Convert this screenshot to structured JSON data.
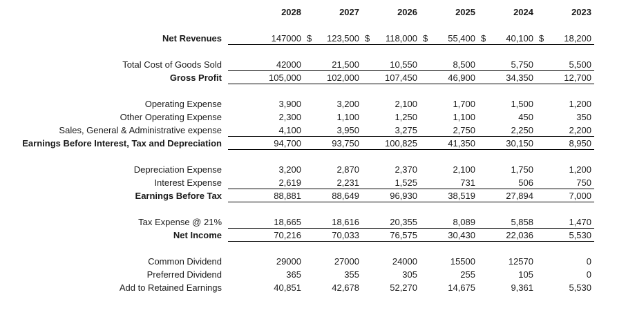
{
  "table": {
    "currency_symbol": "$",
    "years": [
      "2028",
      "2027",
      "2026",
      "2025",
      "2024",
      "2023"
    ],
    "rows": [
      {
        "label": "Net Revenues",
        "bold": true,
        "underline": true,
        "spacer_after": true,
        "dollar_cols": [
          1,
          2,
          3,
          4,
          5
        ],
        "values": [
          "147000",
          "123,500",
          "118,000",
          "55,400",
          "40,100",
          "18,200"
        ]
      },
      {
        "label": "Total Cost of Goods Sold",
        "bold": false,
        "underline": true,
        "values": [
          "42000",
          "21,500",
          "10,550",
          "8,500",
          "5,750",
          "5,500"
        ]
      },
      {
        "label": "Gross Profit",
        "bold": true,
        "underline": true,
        "spacer_after": true,
        "values": [
          "105,000",
          "102,000",
          "107,450",
          "46,900",
          "34,350",
          "12,700"
        ]
      },
      {
        "label": "Operating Expense",
        "bold": false,
        "values": [
          "3,900",
          "3,200",
          "2,100",
          "1,700",
          "1,500",
          "1,200"
        ]
      },
      {
        "label": "Other Operating Expense",
        "bold": false,
        "values": [
          "2,300",
          "1,100",
          "1,250",
          "1,100",
          "450",
          "350"
        ]
      },
      {
        "label": "Sales, General & Administrative expense",
        "bold": false,
        "underline": true,
        "values": [
          "4,100",
          "3,950",
          "3,275",
          "2,750",
          "2,250",
          "2,200"
        ]
      },
      {
        "label": "Earnings Before Interest, Tax and Depreciation",
        "bold": true,
        "underline": true,
        "spacer_after": true,
        "values": [
          "94,700",
          "93,750",
          "100,825",
          "41,350",
          "30,150",
          "8,950"
        ]
      },
      {
        "label": "Depreciation Expense",
        "bold": false,
        "values": [
          "3,200",
          "2,870",
          "2,370",
          "2,100",
          "1,750",
          "1,200"
        ]
      },
      {
        "label": "Interest Expense",
        "bold": false,
        "underline": true,
        "values": [
          "2,619",
          "2,231",
          "1,525",
          "731",
          "506",
          "750"
        ]
      },
      {
        "label": "Earnings Before Tax",
        "bold": true,
        "underline": true,
        "spacer_after": true,
        "values": [
          "88,881",
          "88,649",
          "96,930",
          "38,519",
          "27,894",
          "7,000"
        ]
      },
      {
        "label": "Tax Expense @ 21%",
        "bold": false,
        "underline": true,
        "values": [
          "18,665",
          "18,616",
          "20,355",
          "8,089",
          "5,858",
          "1,470"
        ]
      },
      {
        "label": "Net Income",
        "bold": true,
        "underline": true,
        "spacer_after": true,
        "values": [
          "70,216",
          "70,033",
          "76,575",
          "30,430",
          "22,036",
          "5,530"
        ]
      },
      {
        "label": "Common Dividend",
        "bold": false,
        "values": [
          "29000",
          "27000",
          "24000",
          "15500",
          "12570",
          "0"
        ]
      },
      {
        "label": "Preferred Dividend",
        "bold": false,
        "values": [
          "365",
          "355",
          "305",
          "255",
          "105",
          "0"
        ]
      },
      {
        "label": "Add to Retained Earnings",
        "bold": false,
        "values": [
          "40,851",
          "42,678",
          "52,270",
          "14,675",
          "9,361",
          "5,530"
        ]
      }
    ]
  }
}
